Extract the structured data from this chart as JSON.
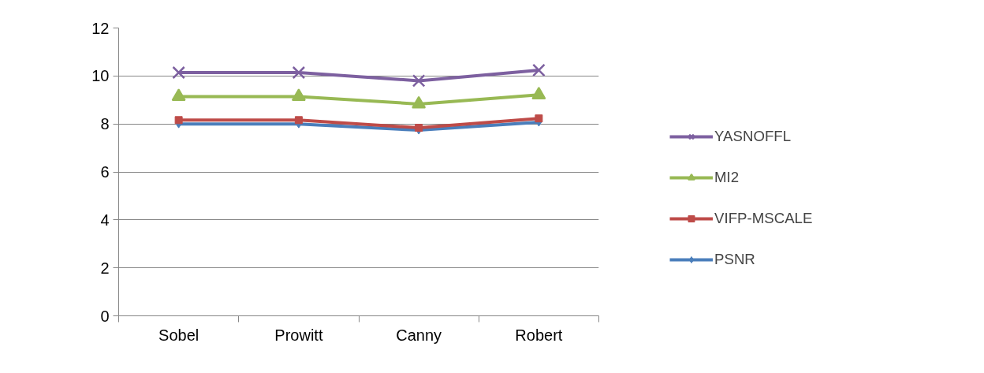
{
  "chart_data": {
    "type": "line",
    "categories": [
      "Sobel",
      "Prowitt",
      "Canny",
      "Robert"
    ],
    "series": [
      {
        "name": "PSNR",
        "color": "#4a7ebb",
        "marker": "diamond",
        "values": [
          8.0,
          8.0,
          7.74,
          8.07
        ]
      },
      {
        "name": "VIFP-MSCALE",
        "color": "#be4b48",
        "marker": "square",
        "values": [
          8.16,
          8.16,
          7.84,
          8.23
        ]
      },
      {
        "name": "MI2",
        "color": "#98b954",
        "marker": "triangle",
        "values": [
          9.14,
          9.14,
          8.83,
          9.21
        ]
      },
      {
        "name": "YASNOFFL",
        "color": "#7d60a0",
        "marker": "cross",
        "values": [
          10.14,
          10.14,
          9.8,
          10.24
        ]
      }
    ],
    "ylim": [
      0,
      12
    ],
    "yticks": [
      0,
      2,
      4,
      6,
      8,
      10,
      12
    ],
    "grid": "y",
    "legend": "right",
    "line_style": "solid"
  }
}
